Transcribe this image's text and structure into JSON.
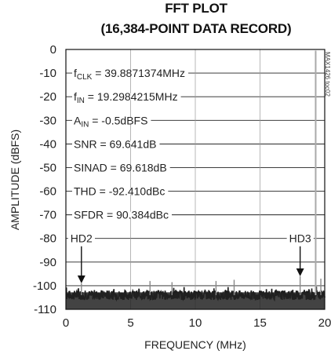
{
  "chart_data": {
    "type": "line",
    "title": "FFT PLOT",
    "subtitle": "(16,384-POINT DATA RECORD)",
    "xlabel": "FREQUENCY (MHz)",
    "ylabel": "AMPLITUDE (dBFS)",
    "xlim": [
      0,
      20
    ],
    "ylim": [
      -110,
      0
    ],
    "x_ticks": [
      "0",
      "5",
      "10",
      "15",
      "20"
    ],
    "y_ticks": [
      "0",
      "-10",
      "-20",
      "-30",
      "-40",
      "-50",
      "-60",
      "-70",
      "-80",
      "-90",
      "-100",
      "-110"
    ],
    "grid": true,
    "annotations": [
      {
        "main": "f",
        "sub": "CLK",
        "rest": " = 39.8871374MHz"
      },
      {
        "main": "f",
        "sub": "IN",
        "rest": " = 19.2984215MHz"
      },
      {
        "main": "A",
        "sub": "IN",
        "rest": " = -0.5dBFS"
      },
      {
        "main": "SNR = 69.641dB",
        "sub": "",
        "rest": ""
      },
      {
        "main": "SINAD = 69.618dB",
        "sub": "",
        "rest": ""
      },
      {
        "main": "THD = -92.410dBc",
        "sub": "",
        "rest": ""
      },
      {
        "main": "SFDR = 90.384dBc",
        "sub": "",
        "rest": ""
      }
    ],
    "markers": [
      {
        "label": "HD2",
        "x": 1.2,
        "y": -99
      },
      {
        "label": "HD3",
        "x": 18.1,
        "y": -96
      }
    ],
    "fundamental": {
      "x": 19.3,
      "y": -0.5
    },
    "noise_floor": -104,
    "spurs": [
      {
        "x": 1.2,
        "y": -99
      },
      {
        "x": 6.5,
        "y": -98
      },
      {
        "x": 8.2,
        "y": -98.5
      },
      {
        "x": 11.6,
        "y": -98
      },
      {
        "x": 13.0,
        "y": -97.5
      },
      {
        "x": 18.1,
        "y": -96
      },
      {
        "x": 19.7,
        "y": -97
      }
    ],
    "side_text": "MAX1426 toc02"
  }
}
